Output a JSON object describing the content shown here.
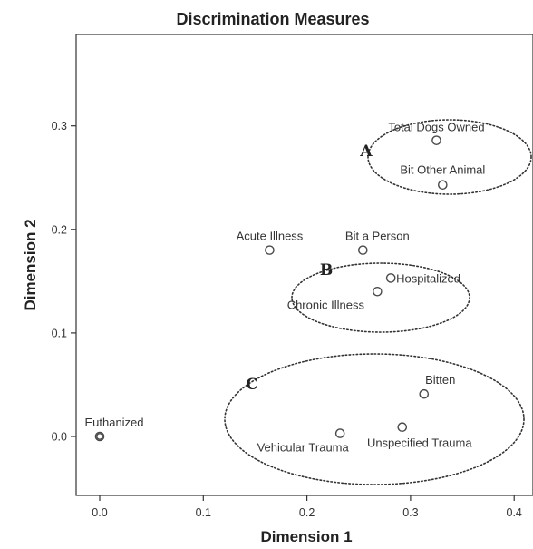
{
  "chart_data": {
    "type": "scatter",
    "title": "Discrimination Measures",
    "xlabel": "Dimension 1",
    "ylabel": "Dimension 2",
    "xlim": [
      -0.03,
      0.41
    ],
    "ylim": [
      -0.06,
      0.385
    ],
    "xticks": [
      "0.0",
      "0.1",
      "0.2",
      "0.3",
      "0.4"
    ],
    "yticks": [
      "0.0",
      "0.1",
      "0.2",
      "0.3"
    ],
    "grid": false,
    "points": [
      {
        "label": "Total Dogs Owned",
        "x": 0.325,
        "y": 0.286
      },
      {
        "label": "Bit Other Animal",
        "x": 0.331,
        "y": 0.243
      },
      {
        "label": "Acute Illness",
        "x": 0.164,
        "y": 0.18
      },
      {
        "label": "Bit a Person",
        "x": 0.254,
        "y": 0.18
      },
      {
        "label": "Hospitalized",
        "x": 0.281,
        "y": 0.153
      },
      {
        "label": "Chronic Illness",
        "x": 0.268,
        "y": 0.14
      },
      {
        "label": "Bitten",
        "x": 0.313,
        "y": 0.041
      },
      {
        "label": "Unspecified Trauma",
        "x": 0.292,
        "y": 0.009
      },
      {
        "label": "Vehicular Trauma",
        "x": 0.232,
        "y": 0.003
      },
      {
        "label": "Euthanized",
        "x": 0.0,
        "y": 0.0
      }
    ],
    "groups": [
      {
        "label": "A",
        "members": [
          "Total Dogs Owned",
          "Bit Other Animal"
        ]
      },
      {
        "label": "B",
        "members": [
          "Bit a Person",
          "Hospitalized",
          "Chronic Illness"
        ]
      },
      {
        "label": "C",
        "members": [
          "Bitten",
          "Unspecified Trauma",
          "Vehicular Trauma"
        ]
      }
    ]
  }
}
